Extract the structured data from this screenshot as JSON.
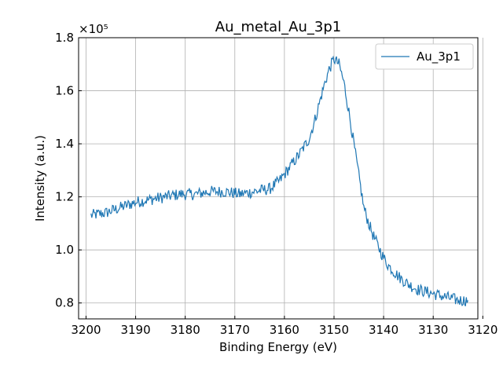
{
  "chart_data": {
    "type": "line",
    "title": "Au_metal_Au_3p1",
    "xlabel": "Binding Energy (eV)",
    "ylabel": "Intensity (a.u.)",
    "y_offset_label": "×10⁵",
    "xlim": [
      3201.5,
      3121.0
    ],
    "x_reversed": true,
    "ylim": [
      0.74,
      1.8
    ],
    "x_ticks": [
      3200,
      3190,
      3180,
      3170,
      3160,
      3150,
      3140,
      3130,
      3120
    ],
    "y_ticks": [
      0.8,
      1.0,
      1.2,
      1.4,
      1.6,
      1.8
    ],
    "y_tick_labels": [
      "0.8",
      "1.0",
      "1.2",
      "1.4",
      "1.6",
      "1.8"
    ],
    "grid": true,
    "legend": {
      "position": "top-right",
      "entries": [
        "Au_3p1"
      ]
    },
    "series": [
      {
        "name": "Au_3p1",
        "color": "#1f77b4",
        "x": [
          3199,
          3196,
          3193,
          3190,
          3187,
          3184,
          3181,
          3178,
          3175,
          3172,
          3169,
          3166,
          3163,
          3161,
          3159,
          3157,
          3155,
          3154,
          3153,
          3152,
          3151,
          3150,
          3149,
          3148,
          3147,
          3146,
          3145,
          3144,
          3143,
          3142,
          3141,
          3140,
          3139,
          3137,
          3135,
          3133,
          3131,
          3129,
          3127,
          3125,
          3123
        ],
        "y": [
          1.13,
          1.14,
          1.16,
          1.18,
          1.19,
          1.2,
          1.21,
          1.21,
          1.22,
          1.22,
          1.21,
          1.22,
          1.23,
          1.26,
          1.31,
          1.36,
          1.42,
          1.48,
          1.55,
          1.62,
          1.68,
          1.72,
          1.7,
          1.63,
          1.52,
          1.4,
          1.28,
          1.16,
          1.1,
          1.05,
          1.01,
          0.97,
          0.94,
          0.9,
          0.87,
          0.85,
          0.84,
          0.83,
          0.82,
          0.81,
          0.81
        ]
      }
    ]
  }
}
